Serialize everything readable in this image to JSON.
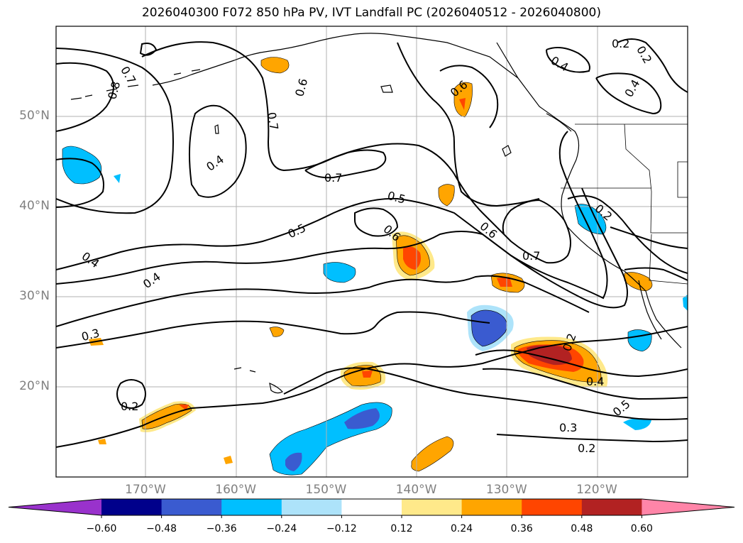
{
  "title": "2026040300 F072 850 hPa PV, IVT Landfall PC (2026040512 - 2026040800)",
  "lat_labels": [
    {
      "text": "50°N",
      "lat": 50
    },
    {
      "text": "40°N",
      "lat": 40
    },
    {
      "text": "30°N",
      "lat": 30
    },
    {
      "text": "20°N",
      "lat": 20
    }
  ],
  "lon_labels": [
    {
      "text": "170°W",
      "lon": -170
    },
    {
      "text": "160°W",
      "lon": -160
    },
    {
      "text": "150°W",
      "lon": -150
    },
    {
      "text": "140°W",
      "lon": -140
    },
    {
      "text": "130°W",
      "lon": -130
    },
    {
      "text": "120°W",
      "lon": -120
    }
  ],
  "colorbar": {
    "levels": [
      "−0.60",
      "−0.48",
      "−0.36",
      "−0.24",
      "−0.12",
      "0.12",
      "0.24",
      "0.36",
      "0.48",
      "0.60"
    ],
    "colors": [
      "#9932CC",
      "#00008B",
      "#3A5BD0",
      "#00BFFF",
      "#ADE3FA",
      "#FFFFFF",
      "#FFE98A",
      "#FFA500",
      "#FF4500",
      "#B22222",
      "#FF85A8"
    ]
  },
  "contour_labels": [
    "0.7",
    "0.8",
    "0.6",
    "0.7",
    "0.4",
    "0.7",
    "0.5",
    "0.5",
    "0.6",
    "0.6",
    "0.7",
    "0.6",
    "0.4",
    "0.2",
    "0.2",
    "0.4",
    "0.2",
    "0.4",
    "0.4",
    "0.3",
    "0.2",
    "0.2",
    "0.4",
    "0.5",
    "0.3",
    "0.2"
  ]
}
